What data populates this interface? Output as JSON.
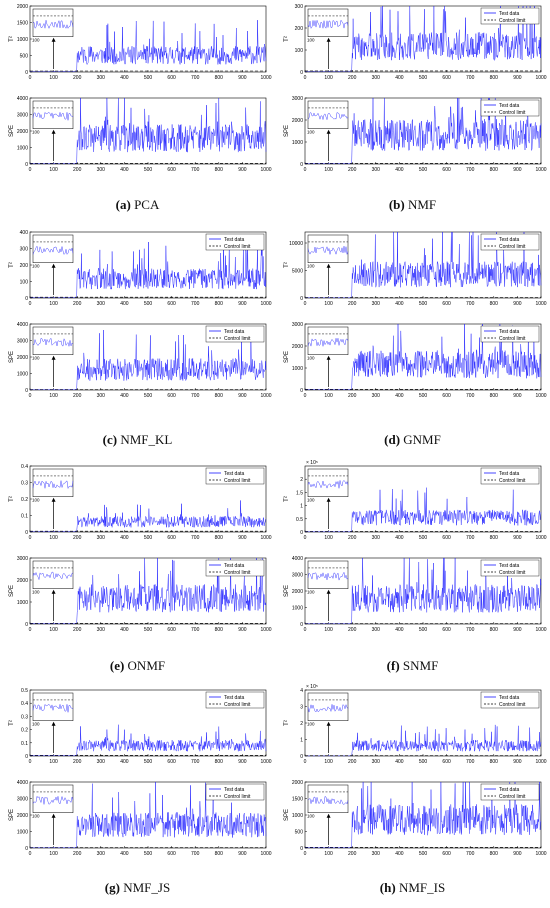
{
  "panels": [
    {
      "id": "a",
      "label": "(a)",
      "name": "PCA",
      "t2_max": 2000,
      "t2_ticks": [
        "0",
        "500",
        "1000",
        "1500",
        "2000"
      ],
      "spe_max": 4000,
      "spe_ticks": [
        "0",
        "1000",
        "2000",
        "3000",
        "4000"
      ],
      "legend": false,
      "t2_inset": "100",
      "spe_inset": "100"
    },
    {
      "id": "b",
      "label": "(b)",
      "name": "NMF",
      "t2_max": 300,
      "t2_ticks": [
        "0",
        "100",
        "200",
        "300"
      ],
      "spe_max": 3000,
      "spe_ticks": [
        "0",
        "1000",
        "2000",
        "3000"
      ],
      "legend": true,
      "t2_inset": "100",
      "spe_inset": "100"
    },
    {
      "id": "c",
      "label": "(c)",
      "name": "NMF_KL",
      "t2_max": 400,
      "t2_ticks": [
        "0",
        "100",
        "200",
        "300",
        "400"
      ],
      "spe_max": 4000,
      "spe_ticks": [
        "0",
        "1000",
        "2000",
        "3000",
        "4000"
      ],
      "legend": true,
      "t2_inset": "100",
      "spe_inset": "100"
    },
    {
      "id": "d",
      "label": "(d)",
      "name": "GNMF",
      "t2_max": 12000,
      "t2_ticks": [
        "0",
        "5000",
        "10000"
      ],
      "spe_max": 3000,
      "spe_ticks": [
        "0",
        "1000",
        "2000",
        "3000"
      ],
      "legend": true,
      "t2_inset": "100",
      "spe_inset": "100"
    },
    {
      "id": "e",
      "label": "(e)",
      "name": "ONMF",
      "t2_max": 0.4,
      "t2_ticks": [
        "0",
        "0.1",
        "0.2",
        "0.3",
        "0.4"
      ],
      "spe_max": 3000,
      "spe_ticks": [
        "0",
        "1000",
        "2000",
        "3000"
      ],
      "legend": true,
      "t2_inset": "100",
      "spe_inset": "100"
    },
    {
      "id": "f",
      "label": "(f)",
      "name": "SNMF",
      "t2_max": 2.5,
      "t2_ticks": [
        "0",
        "0.5",
        "1",
        "1.5",
        "2"
      ],
      "t2_exp": "× 10⁵",
      "spe_max": 4000,
      "spe_ticks": [
        "0",
        "1000",
        "2000",
        "3000",
        "4000"
      ],
      "legend": true,
      "t2_inset": "100",
      "spe_inset": "100"
    },
    {
      "id": "g",
      "label": "(g)",
      "name": "NMF_JS",
      "t2_max": 0.5,
      "t2_ticks": [
        "0",
        "0.1",
        "0.2",
        "0.3",
        "0.4",
        "0.5"
      ],
      "spe_max": 4000,
      "spe_ticks": [
        "0",
        "1000",
        "2000",
        "3000",
        "4000"
      ],
      "legend": true,
      "t2_inset": "100",
      "spe_inset": "100"
    },
    {
      "id": "h",
      "label": "(h)",
      "name": "NMF_IS",
      "t2_max": 4,
      "t2_ticks": [
        "0",
        "1",
        "2",
        "3",
        "4"
      ],
      "t2_exp": "× 10⁵",
      "spe_max": 2000,
      "spe_ticks": [
        "0",
        "500",
        "1000",
        "1500",
        "2000"
      ],
      "legend": true,
      "t2_inset": "100",
      "spe_inset": "100"
    }
  ],
  "common": {
    "x_ticks": [
      "0",
      "100",
      "200",
      "300",
      "400",
      "500",
      "600",
      "700",
      "800",
      "900",
      "1000"
    ],
    "t2_ylabel": "T²",
    "spe_ylabel": "SPE",
    "legend_test": "Test data",
    "legend_limit": "Control limit"
  },
  "colors": {
    "test": "#1a1aff",
    "limit": "#000000",
    "axis": "#000000"
  },
  "chart_data": [
    {
      "type": "line",
      "title": "PCA",
      "xlim": [
        0,
        1000
      ],
      "charts": [
        {
          "ylabel": "T²",
          "ylim": [
            0,
            2000
          ],
          "fault_start": 200,
          "normal_level": 20,
          "fault_mean": 650,
          "control_limit": 30
        },
        {
          "ylabel": "SPE",
          "ylim": [
            0,
            4000
          ],
          "fault_start": 200,
          "normal_level": 30,
          "fault_mean": 2000,
          "control_limit": 40
        }
      ]
    },
    {
      "type": "line",
      "title": "NMF",
      "xlim": [
        0,
        1000
      ],
      "charts": [
        {
          "ylabel": "T²",
          "ylim": [
            0,
            300
          ],
          "fault_start": 200,
          "normal_level": 3,
          "fault_mean": 150,
          "control_limit": 5
        },
        {
          "ylabel": "SPE",
          "ylim": [
            0,
            3000
          ],
          "fault_start": 200,
          "normal_level": 20,
          "fault_mean": 1700,
          "control_limit": 30
        }
      ]
    },
    {
      "type": "line",
      "title": "NMF_KL",
      "xlim": [
        0,
        1000
      ],
      "charts": [
        {
          "ylabel": "T²",
          "ylim": [
            0,
            400
          ],
          "fault_start": 200,
          "normal_level": 3,
          "fault_mean": 150,
          "control_limit": 5
        },
        {
          "ylabel": "SPE",
          "ylim": [
            0,
            4000
          ],
          "fault_start": 200,
          "normal_level": 20,
          "fault_mean": 1600,
          "control_limit": 30
        }
      ]
    },
    {
      "type": "line",
      "title": "GNMF",
      "xlim": [
        0,
        1000
      ],
      "charts": [
        {
          "ylabel": "T²",
          "ylim": [
            0,
            12000
          ],
          "fault_start": 200,
          "normal_level": 50,
          "fault_mean": 5500,
          "control_limit": 80
        },
        {
          "ylabel": "SPE",
          "ylim": [
            0,
            3000
          ],
          "fault_start": 200,
          "normal_level": 20,
          "fault_mean": 1500,
          "control_limit": 30
        }
      ]
    },
    {
      "type": "line",
      "title": "ONMF",
      "xlim": [
        0,
        1000
      ],
      "charts": [
        {
          "ylabel": "T²",
          "ylim": [
            0,
            0.4
          ],
          "fault_start": 200,
          "normal_level": 0.003,
          "fault_mean": 0.08,
          "control_limit": 0.005
        },
        {
          "ylabel": "SPE",
          "ylim": [
            0,
            3000
          ],
          "fault_start": 200,
          "normal_level": 20,
          "fault_mean": 1500,
          "control_limit": 30
        }
      ]
    },
    {
      "type": "line",
      "title": "SNMF",
      "xlim": [
        0,
        1000
      ],
      "charts": [
        {
          "ylabel": "T²",
          "ylim": [
            0,
            250000
          ],
          "fault_start": 200,
          "normal_level": 1000,
          "fault_mean": 70000,
          "control_limit": 2000
        },
        {
          "ylabel": "SPE",
          "ylim": [
            0,
            4000
          ],
          "fault_start": 200,
          "normal_level": 20,
          "fault_mean": 2000,
          "control_limit": 30
        }
      ]
    },
    {
      "type": "line",
      "title": "NMF_JS",
      "xlim": [
        0,
        1000
      ],
      "charts": [
        {
          "ylabel": "T²",
          "ylim": [
            0,
            0.5
          ],
          "fault_start": 200,
          "normal_level": 0.003,
          "fault_mean": 0.1,
          "control_limit": 0.005
        },
        {
          "ylabel": "SPE",
          "ylim": [
            0,
            4000
          ],
          "fault_start": 200,
          "normal_level": 20,
          "fault_mean": 1800,
          "control_limit": 30
        }
      ]
    },
    {
      "type": "line",
      "title": "NMF_IS",
      "xlim": [
        0,
        1000
      ],
      "charts": [
        {
          "ylabel": "T²",
          "ylim": [
            0,
            400000
          ],
          "fault_start": 200,
          "normal_level": 1000,
          "fault_mean": 80000,
          "control_limit": 2000
        },
        {
          "ylabel": "SPE",
          "ylim": [
            0,
            2000
          ],
          "fault_start": 200,
          "normal_level": 10,
          "fault_mean": 1100,
          "control_limit": 20
        }
      ]
    }
  ]
}
